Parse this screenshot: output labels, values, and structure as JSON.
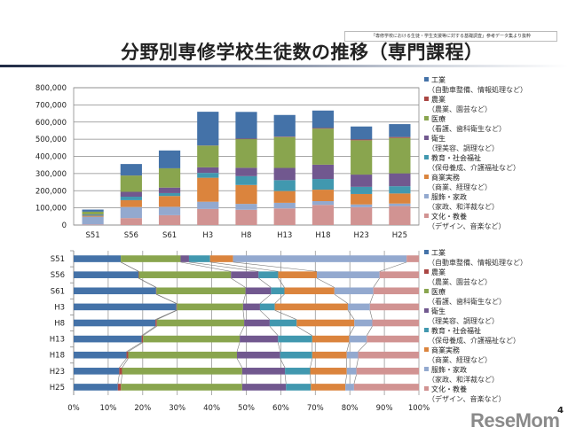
{
  "header": {
    "title": "分野別専修学校生徒数の推移（専門課程）",
    "source_note": "「専修学校における生徒・学生支援等に対する基礎調査」参考データ集より抜粋"
  },
  "footer": {
    "logo": "ReseMom",
    "page_number": "4"
  },
  "chart_data": [
    {
      "type": "bar",
      "stacked": true,
      "categories": [
        "S51",
        "S56",
        "S61",
        "H3",
        "H8",
        "H13",
        "H18",
        "H23",
        "H25"
      ],
      "ylim": [
        0,
        800000
      ],
      "yticks": [
        "0",
        "100,000",
        "200,000",
        "300,000",
        "400,000",
        "500,000",
        "600,000",
        "700,000",
        "800,000"
      ],
      "grid": true,
      "legend": "right",
      "series": [
        {
          "name": "工業",
          "sub": "（自動車整備、情報処理など）",
          "color": "#4472a8",
          "values": [
            12300,
            66700,
            103700,
            196400,
            156200,
            126300,
            102100,
            75800,
            75300
          ]
        },
        {
          "name": "農業",
          "sub": "（農業、園芸など）",
          "color": "#aa4643",
          "values": [
            0,
            500,
            500,
            1000,
            2600,
            2600,
            3300,
            4600,
            5300
          ]
        },
        {
          "name": "医療",
          "sub": "（看護、歯科衛生など）",
          "color": "#89a54e",
          "values": [
            15600,
            94800,
            112000,
            126500,
            166700,
            179500,
            210100,
            199800,
            206400
          ]
        },
        {
          "name": "衛生",
          "sub": "（理美容、調理など）",
          "color": "#71588f",
          "values": [
            2200,
            28400,
            32100,
            32300,
            48800,
            71200,
            83400,
            71200,
            74700
          ]
        },
        {
          "name": "教育・社会福祉",
          "sub": "（保母養成、介護福祉など）",
          "color": "#4198af",
          "values": [
            5500,
            20200,
            16900,
            28300,
            51400,
            63500,
            62000,
            41900,
            42300
          ]
        },
        {
          "name": "商業実務",
          "sub": "（商業、経理など）",
          "color": "#db843d",
          "values": [
            6000,
            39800,
            62900,
            139700,
            110100,
            68600,
            66700,
            60800,
            58800
          ]
        },
        {
          "name": "服飾・家政",
          "sub": "（家政、和洋裁など）",
          "color": "#93a9cf",
          "values": [
            45300,
            64600,
            49000,
            42200,
            34300,
            32700,
            22000,
            16100,
            14700
          ]
        },
        {
          "name": "文化・教養",
          "sub": "（デザイン、音楽など）",
          "color": "#d19392",
          "values": [
            3200,
            40500,
            57300,
            93600,
            89000,
            96800,
            117400,
            103900,
            110500
          ]
        }
      ]
    },
    {
      "type": "bar",
      "stacked": true,
      "percent": true,
      "orientation": "horizontal",
      "categories": [
        "S51",
        "S56",
        "S61",
        "H3",
        "H8",
        "H13",
        "H18",
        "H23",
        "H25"
      ],
      "xlim": [
        0,
        100
      ],
      "xticks": [
        "0%",
        "10%",
        "20%",
        "30%",
        "40%",
        "50%",
        "60%",
        "70%",
        "80%",
        "90%",
        "100%"
      ],
      "grid": true,
      "legend": "right",
      "series_lines": true
    }
  ]
}
